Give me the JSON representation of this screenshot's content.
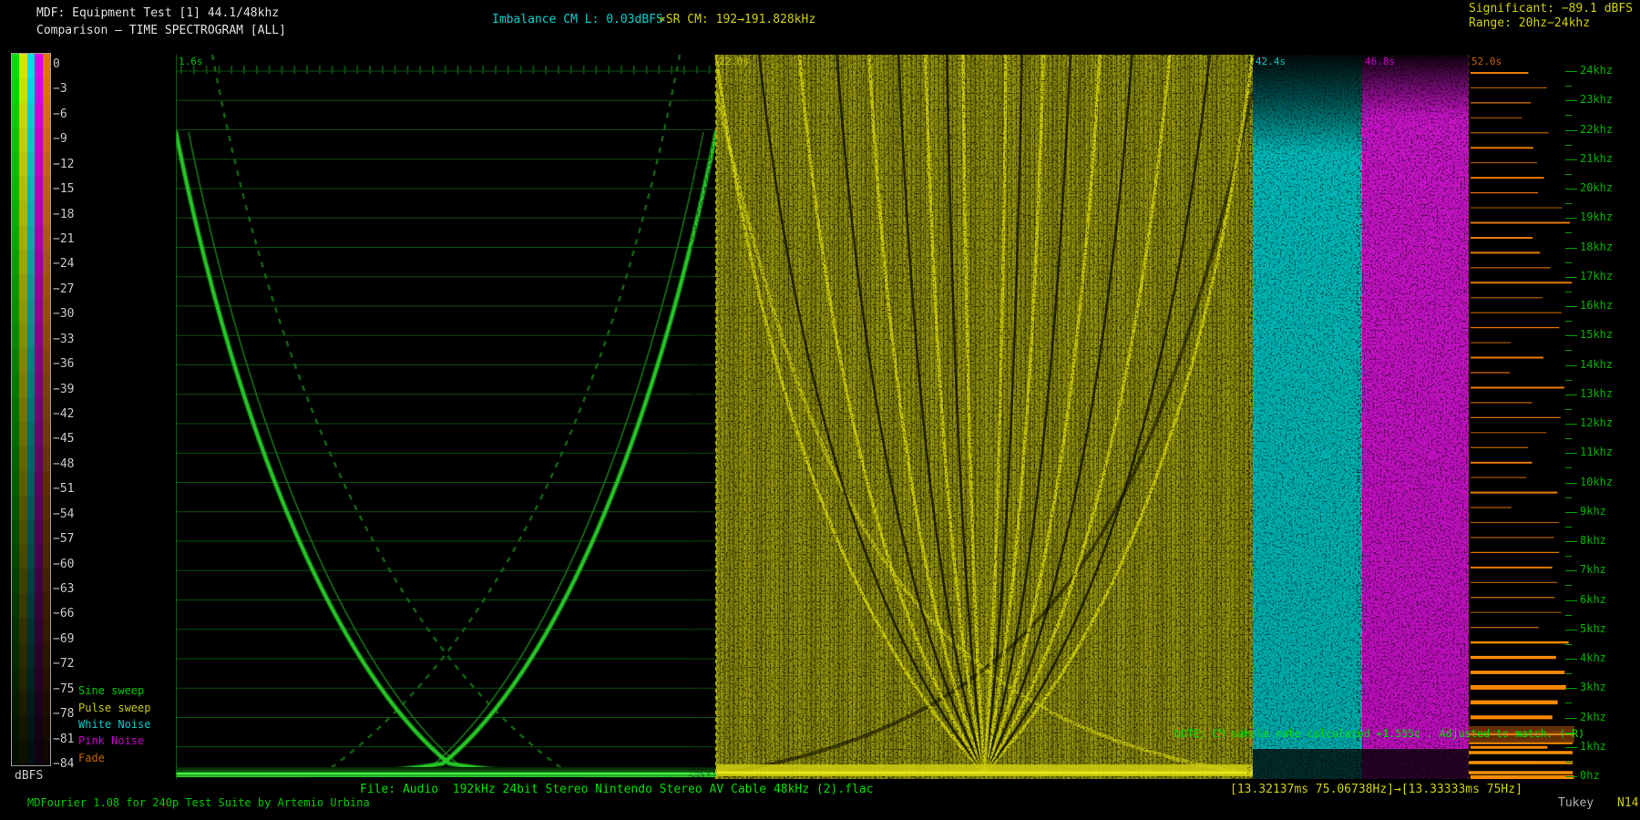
{
  "header": {
    "title_line1": "MDF: Equipment Test [1] 44.1/48khz",
    "title_line2": "Comparison — TIME SPECTROGRAM [ALL]",
    "imbalance": "Imbalance CM L: 0.03dBFS",
    "sr_info": "∝SR CM: 192→191.828kHz",
    "significant": "Significant: −89.1 dBFS",
    "range": "Range: 20hz−24khz"
  },
  "scale": {
    "unit_label": "dBFS",
    "db_labels": [
      "0",
      "−3",
      "−6",
      "−9",
      "−12",
      "−15",
      "−18",
      "−21",
      "−24",
      "−27",
      "−30",
      "−33",
      "−36",
      "−39",
      "−42",
      "−45",
      "−48",
      "−51",
      "−54",
      "−57",
      "−60",
      "−63",
      "−66",
      "−69",
      "−72",
      "−75",
      "−78",
      "−81",
      "−84"
    ],
    "strip_colors": [
      "#00e000",
      "#e0e000",
      "#00dede",
      "#e000e0",
      "#e07800"
    ]
  },
  "legend": {
    "items": [
      {
        "label": "Sine sweep",
        "color": "#00c800"
      },
      {
        "label": "Pulse sweep",
        "color": "#c8c800"
      },
      {
        "label": "White Noise",
        "color": "#00c8c8"
      },
      {
        "label": "Pink Noise",
        "color": "#c800c8"
      },
      {
        "label": "Fade",
        "color": "#c86400"
      }
    ]
  },
  "chart_data": {
    "type": "heatmap",
    "subtype": "time-spectrogram",
    "title": "Comparison — TIME SPECTROGRAM [ALL]",
    "x_axis": {
      "unit": "seconds",
      "tick_labels": [
        "1.6s",
        "22.0s",
        "42.4s",
        "46.8s",
        "52.0s"
      ]
    },
    "y_axis": {
      "unit": "frequency",
      "range_hz": [
        0,
        24000
      ],
      "tick_step_khz": 1,
      "tick_labels": [
        "24khz",
        "23khz",
        "22khz",
        "21khz",
        "20khz",
        "19khz",
        "18khz",
        "17khz",
        "16khz",
        "15khz",
        "14khz",
        "13khz",
        "12khz",
        "11khz",
        "10khz",
        "9khz",
        "8khz",
        "7khz",
        "6khz",
        "5khz",
        "4khz",
        "3khz",
        "2khz",
        "1khz",
        "0hz"
      ]
    },
    "color_axis": {
      "unit": "dBFS",
      "range": [
        0,
        -84
      ],
      "step": -3
    },
    "sections": [
      {
        "label": "1.6s",
        "name": "Sine sweep",
        "color": "#00c800",
        "t_start": 1.6
      },
      {
        "label": "22.0s",
        "name": "Pulse sweep",
        "color": "#c8c800",
        "t_start": 22.0
      },
      {
        "label": "42.4s",
        "name": "White Noise",
        "color": "#00c8c8",
        "t_start": 42.4
      },
      {
        "label": "46.8s",
        "name": "Pink Noise",
        "color": "#c800c8",
        "t_start": 46.8
      },
      {
        "label": "52.0s",
        "name": "Fade",
        "color": "#c86400",
        "t_start": 52.0
      }
    ],
    "significant_level_dbfs": -89.1,
    "analysis_range": "20hz−24khz"
  },
  "plot": {
    "note": "NOTE: CM sample rate calculated +1.555¢ . Adjusted to match. (−R)"
  },
  "footer": {
    "file_info": "File: Audio  192kHz 24bit Stereo Nintendo Stereo AV Cable 48kHz (2).flac",
    "app_credit": "MDFourier 1.08 for 240p Test Suite by Artemio Urbina",
    "window_info": "[13.32137ms 75.06738Hz]→[13.33333ms 75Hz]",
    "window_type": "Tukey",
    "window_size": "N14"
  }
}
